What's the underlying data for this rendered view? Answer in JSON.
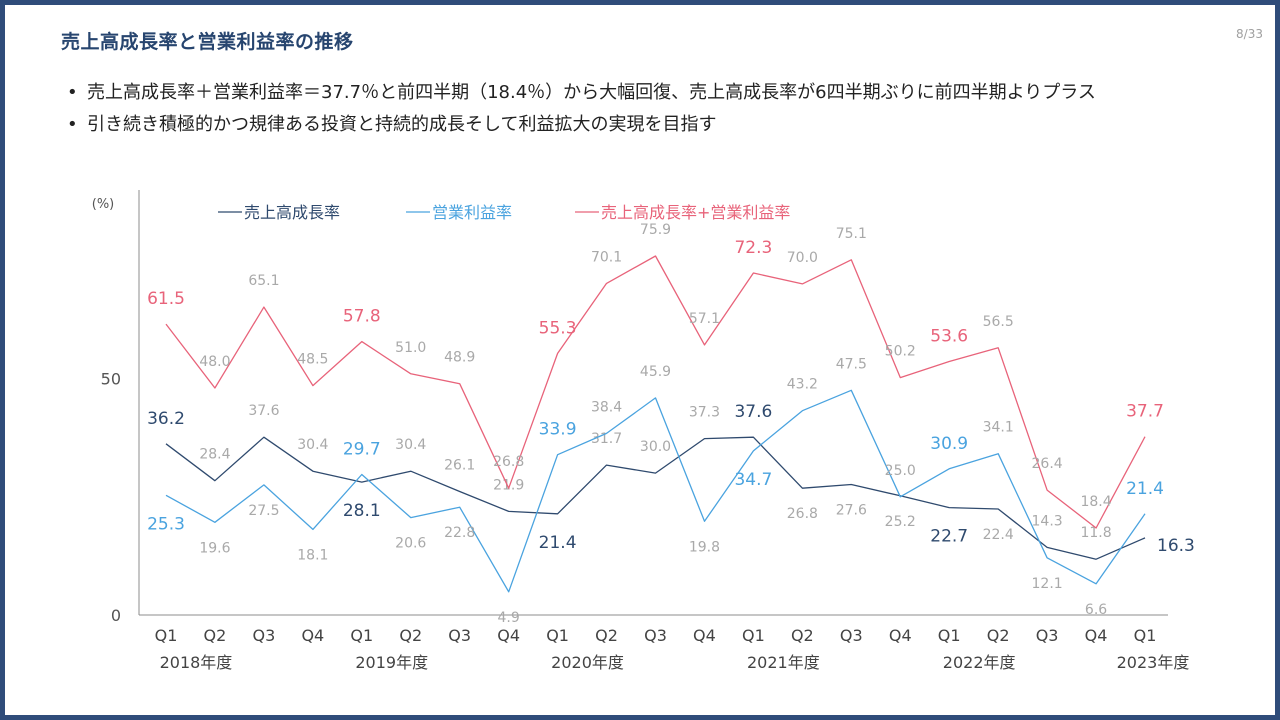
{
  "slide": {
    "title": "売上高成長率と営業利益率の推移",
    "page_number": "8/33",
    "bullets": [
      "売上高成長率＋営業利益率＝37.7％と前四半期（18.4％）から大幅回復、売上高成長率が6四半期ぶりに前四半期よりプラス",
      "引き続き積極的かつ規律ある投資と持続的成長そして利益拡大の実現を目指す"
    ]
  },
  "colors": {
    "title": "#27456f",
    "sales_growth": "#2f4a6e",
    "operating_margin": "#4aa3df",
    "sum": "#e8637a",
    "muted_label": "#a9a9a9",
    "axis": "#8c8c8c"
  },
  "chart_data": {
    "type": "line",
    "ylabel": "(%)",
    "ylim": [
      0,
      80
    ],
    "yticks": [
      0,
      50
    ],
    "categories": [
      "Q1",
      "Q2",
      "Q3",
      "Q4",
      "Q1",
      "Q2",
      "Q3",
      "Q4",
      "Q1",
      "Q2",
      "Q3",
      "Q4",
      "Q1",
      "Q2",
      "Q3",
      "Q4",
      "Q1",
      "Q2",
      "Q3",
      "Q4",
      "Q1"
    ],
    "fiscal_years": [
      {
        "label": "2018年度",
        "start": 0
      },
      {
        "label": "2019年度",
        "start": 4
      },
      {
        "label": "2020年度",
        "start": 8
      },
      {
        "label": "2021年度",
        "start": 12
      },
      {
        "label": "2022年度",
        "start": 16
      },
      {
        "label": "2023年度",
        "start": 20
      }
    ],
    "legend_position": "top",
    "series": [
      {
        "name": "売上高成長率",
        "key": "sales_growth",
        "values": [
          36.2,
          28.4,
          37.6,
          30.4,
          28.1,
          30.4,
          26.1,
          21.9,
          21.4,
          31.7,
          30.0,
          37.3,
          37.6,
          26.8,
          27.6,
          25.2,
          22.7,
          22.4,
          14.3,
          11.8,
          16.3
        ],
        "highlight": [
          0,
          4,
          8,
          12,
          16,
          20
        ],
        "label_side": [
          "above",
          "above",
          "above",
          "above",
          "below",
          "above",
          "above",
          "above",
          "below",
          "above",
          "above",
          "above",
          "above",
          "below",
          "below",
          "below",
          "below",
          "below",
          "above",
          "above",
          "right"
        ]
      },
      {
        "name": "営業利益率",
        "key": "operating_margin",
        "values": [
          25.3,
          19.6,
          27.5,
          18.1,
          29.7,
          20.6,
          22.8,
          4.9,
          33.9,
          38.4,
          45.9,
          19.8,
          34.7,
          43.2,
          47.5,
          25.0,
          30.9,
          34.1,
          12.1,
          6.6,
          21.4
        ],
        "highlight": [
          0,
          4,
          8,
          12,
          16,
          20
        ],
        "label_side": [
          "below",
          "below",
          "below",
          "below",
          "above",
          "below",
          "below",
          "below",
          "above",
          "above",
          "above",
          "below",
          "below",
          "above",
          "above",
          "above",
          "above",
          "above",
          "below",
          "below",
          "above"
        ]
      },
      {
        "name": "売上高成長率+営業利益率",
        "key": "sum",
        "values": [
          61.5,
          48.0,
          65.1,
          48.5,
          57.8,
          51.0,
          48.9,
          26.8,
          55.3,
          70.1,
          75.9,
          57.1,
          72.3,
          70.0,
          75.1,
          50.2,
          53.6,
          56.5,
          26.4,
          18.4,
          37.7
        ],
        "highlight": [
          0,
          4,
          8,
          12,
          16,
          20
        ],
        "label_side": [
          "above",
          "above",
          "above",
          "above",
          "above",
          "above",
          "above",
          "above",
          "above",
          "above",
          "above",
          "above",
          "above",
          "above",
          "above",
          "above",
          "above",
          "above",
          "above",
          "above",
          "above"
        ]
      }
    ]
  }
}
